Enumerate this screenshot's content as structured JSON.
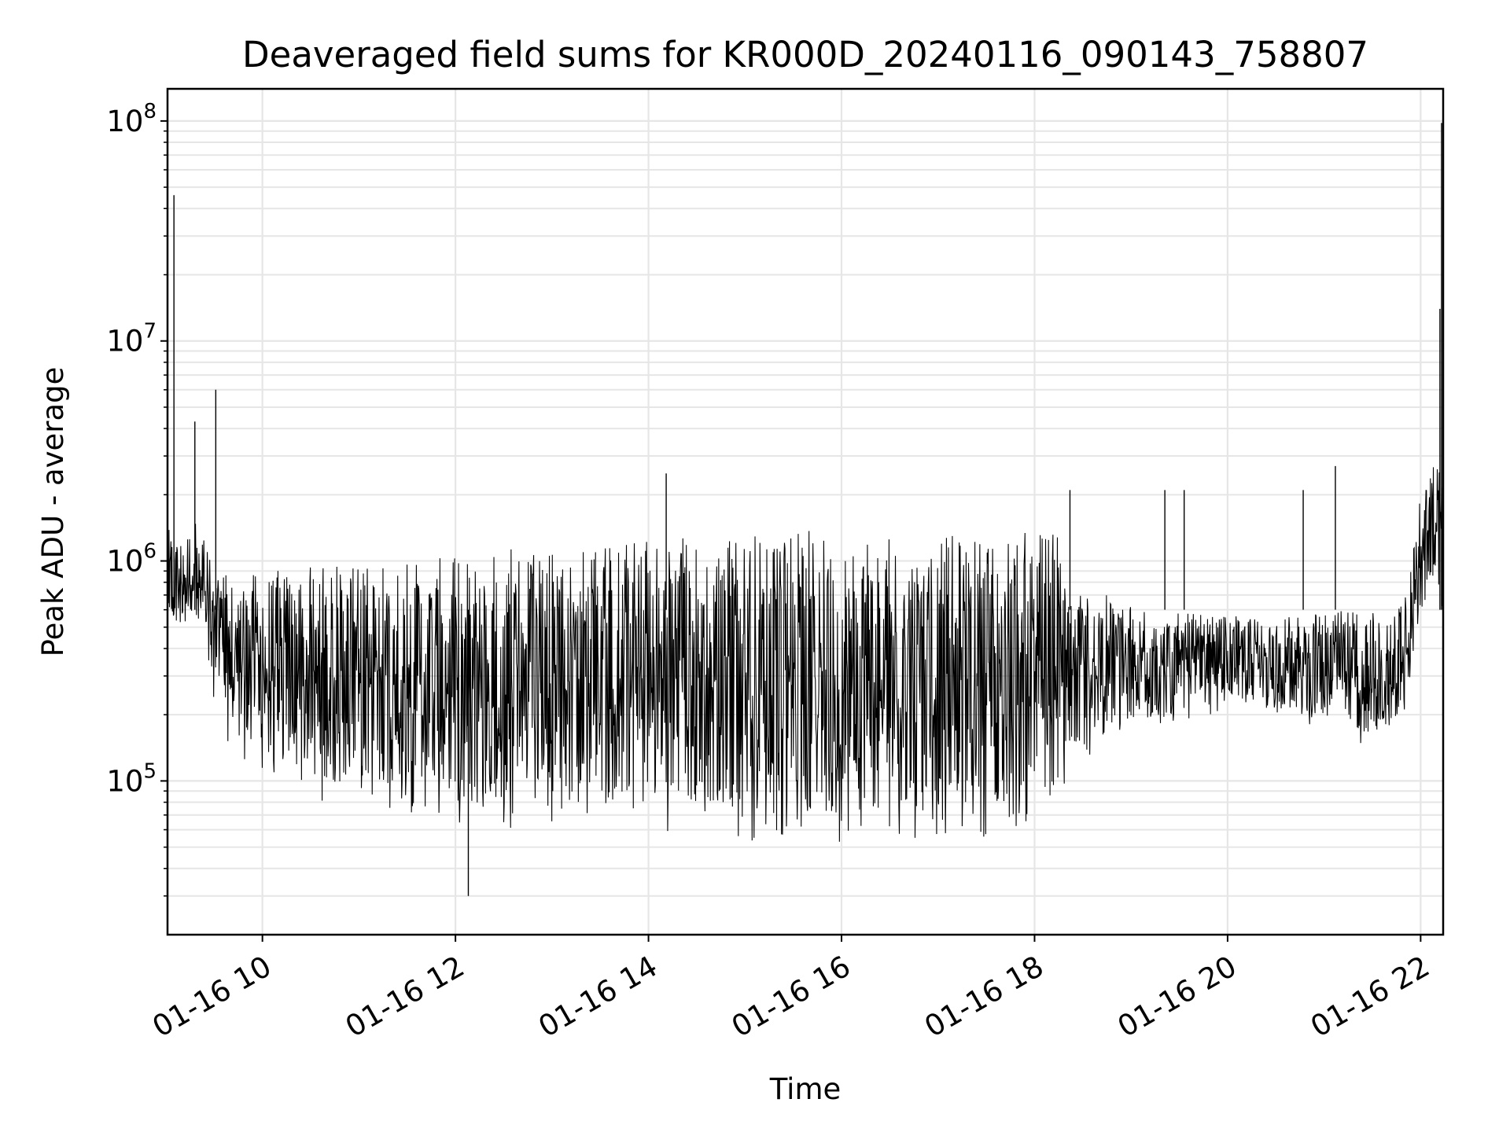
{
  "chart_data": {
    "type": "line",
    "title": "Deaveraged field sums for KR000D_20240116_090143_758807",
    "xlabel": "Time",
    "ylabel": "Peak ADU - average",
    "x_scale": "time",
    "y_scale": "log",
    "xlim": [
      "2024-01-16 09:01",
      "2024-01-16 22:14"
    ],
    "ylim": [
      20000,
      140000000
    ],
    "x_ticks": [
      {
        "value": "2024-01-16 10:00",
        "label": "01-16 10"
      },
      {
        "value": "2024-01-16 12:00",
        "label": "01-16 12"
      },
      {
        "value": "2024-01-16 14:00",
        "label": "01-16 14"
      },
      {
        "value": "2024-01-16 16:00",
        "label": "01-16 16"
      },
      {
        "value": "2024-01-16 18:00",
        "label": "01-16 18"
      },
      {
        "value": "2024-01-16 20:00",
        "label": "01-16 20"
      },
      {
        "value": "2024-01-16 22:00",
        "label": "01-16 22"
      }
    ],
    "y_ticks": [
      {
        "value": 100000,
        "base": "10",
        "exp": "5"
      },
      {
        "value": 1000000,
        "base": "10",
        "exp": "6"
      },
      {
        "value": 10000000,
        "base": "10",
        "exp": "7"
      },
      {
        "value": 100000000,
        "base": "10",
        "exp": "8"
      }
    ],
    "grid": true,
    "line_color": "#000000",
    "grid_color": "#e6e6e6",
    "series": [
      {
        "style": "noisy-band",
        "x": [
          "2024-01-16 09:01",
          "2024-01-16 09:10",
          "2024-01-16 09:20",
          "2024-01-16 09:30",
          "2024-01-16 09:40",
          "2024-01-16 10:00",
          "2024-01-16 10:30",
          "2024-01-16 11:00",
          "2024-01-16 11:30",
          "2024-01-16 12:00",
          "2024-01-16 12:30",
          "2024-01-16 13:00",
          "2024-01-16 13:30",
          "2024-01-16 14:00",
          "2024-01-16 14:30",
          "2024-01-16 15:00",
          "2024-01-16 15:30",
          "2024-01-16 16:00",
          "2024-01-16 16:30",
          "2024-01-16 17:00",
          "2024-01-16 17:30",
          "2024-01-16 18:00",
          "2024-01-16 18:15",
          "2024-01-16 18:25",
          "2024-01-16 18:45",
          "2024-01-16 19:00",
          "2024-01-16 19:30",
          "2024-01-16 20:00",
          "2024-01-16 20:30",
          "2024-01-16 21:00",
          "2024-01-16 21:30",
          "2024-01-16 21:50",
          "2024-01-16 22:00",
          "2024-01-16 22:10",
          "2024-01-16 22:14"
        ],
        "low": [
          400000,
          450000,
          550000,
          200000,
          140000,
          100000,
          80000,
          75000,
          70000,
          60000,
          55000,
          65000,
          62000,
          60000,
          55000,
          52000,
          50000,
          52000,
          55000,
          52000,
          55000,
          55000,
          62000,
          110000,
          140000,
          150000,
          180000,
          210000,
          200000,
          170000,
          140000,
          170000,
          500000,
          800000,
          400000
        ],
        "high": [
          1400000,
          1300000,
          1600000,
          900000,
          850000,
          900000,
          950000,
          1000000,
          1000000,
          1050000,
          1150000,
          1150000,
          1250000,
          1300000,
          1300000,
          1400000,
          1400000,
          1350000,
          1300000,
          1300000,
          1350000,
          1400000,
          1500000,
          750000,
          700000,
          620000,
          580000,
          560000,
          560000,
          580000,
          620000,
          700000,
          2000000,
          3000000,
          2500000
        ]
      }
    ],
    "spikes": [
      {
        "x": "2024-01-16 09:05",
        "y": 46000000
      },
      {
        "x": "2024-01-16 09:18",
        "y": 4300000
      },
      {
        "x": "2024-01-16 09:31",
        "y": 6000000
      },
      {
        "x": "2024-01-16 14:11",
        "y": 2500000
      },
      {
        "x": "2024-01-16 18:22",
        "y": 2100000
      },
      {
        "x": "2024-01-16 19:21",
        "y": 2100000
      },
      {
        "x": "2024-01-16 19:33",
        "y": 2100000
      },
      {
        "x": "2024-01-16 21:07",
        "y": 2700000
      },
      {
        "x": "2024-01-16 20:47",
        "y": 2100000
      },
      {
        "x": "2024-01-16 22:12",
        "y": 14000000
      },
      {
        "x": "2024-01-16 22:13",
        "y": 98000000
      },
      {
        "x": "2024-01-16 12:08",
        "y": 30000
      }
    ]
  }
}
